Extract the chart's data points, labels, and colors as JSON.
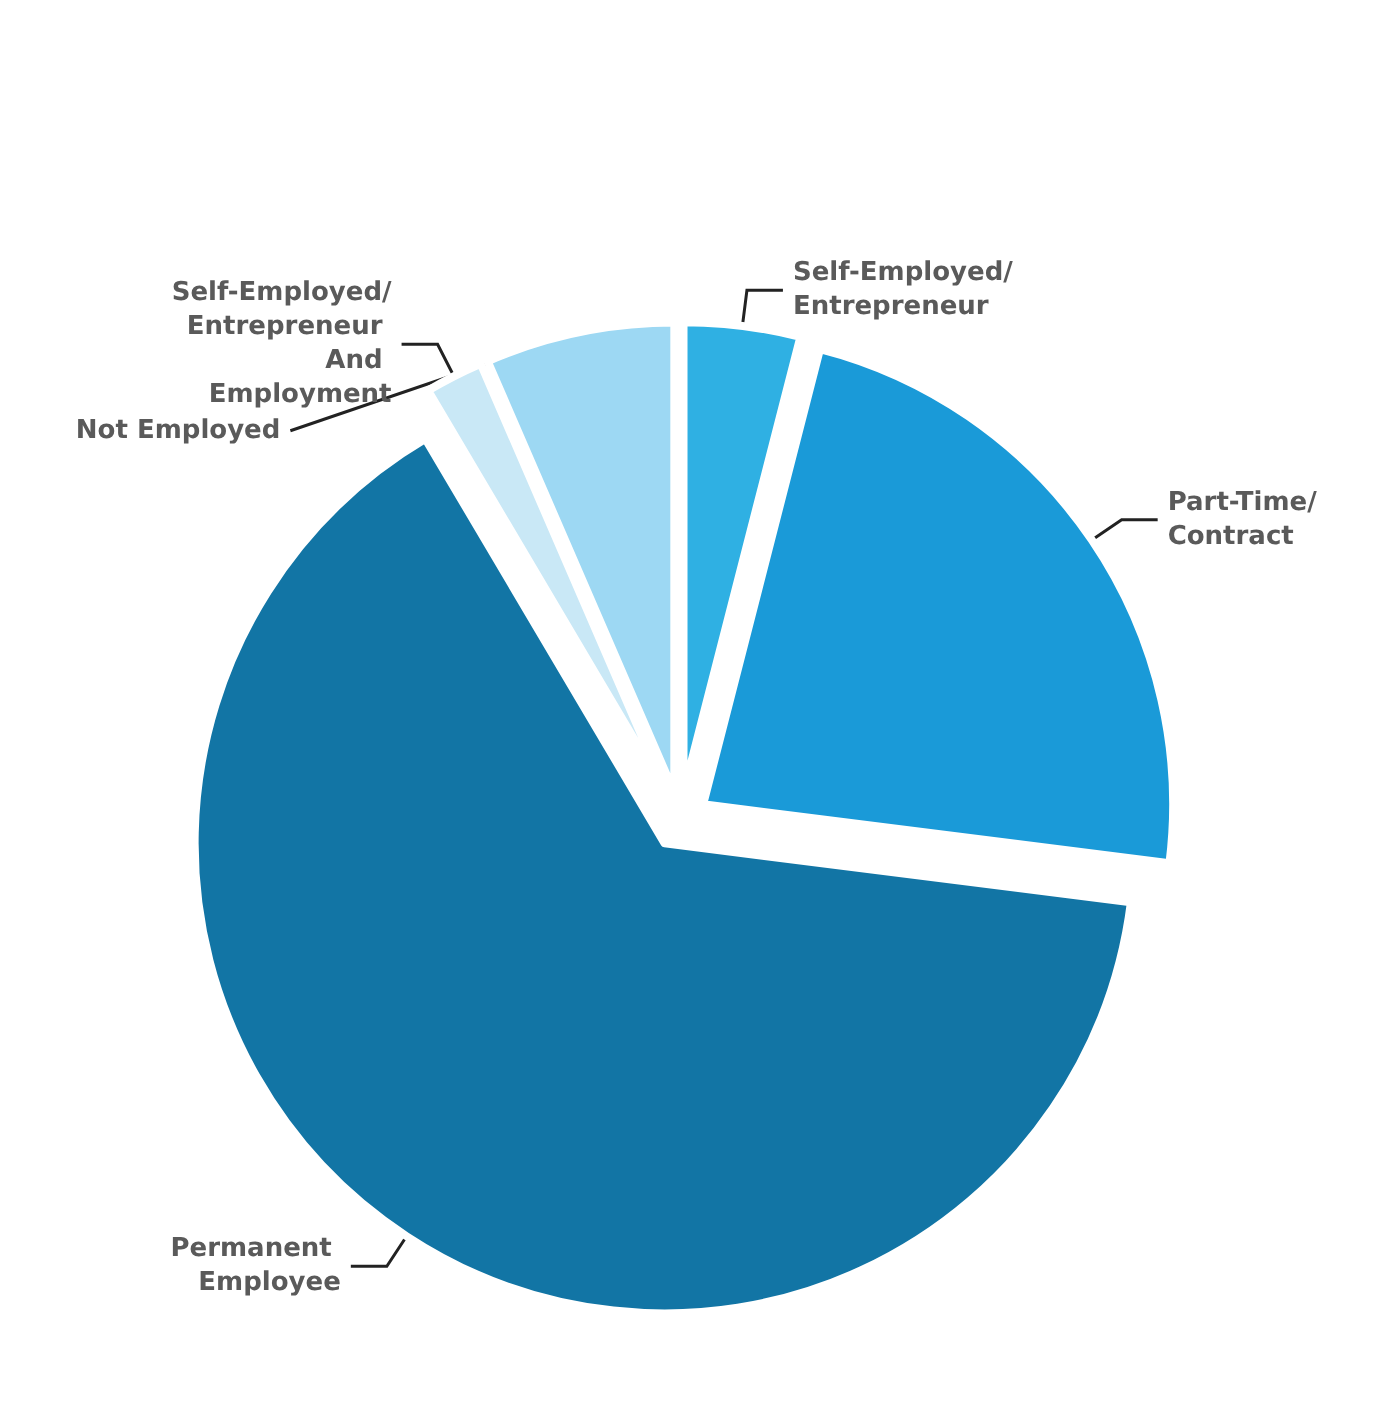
{
  "chart_data": {
    "type": "pie",
    "categories": [
      "Self-Employed/Entrepreneur",
      "Part-Time/Contract",
      "Permanent Employee",
      "Self-Employed/Entrepreneur And Employment",
      "Not Employed"
    ],
    "values": [
      4,
      23,
      64.5,
      2,
      6.5
    ],
    "colors": [
      "#2fb0e3",
      "#1a9ad8",
      "#1275a5",
      "#c9e8f6",
      "#9dd8f3"
    ]
  }
}
